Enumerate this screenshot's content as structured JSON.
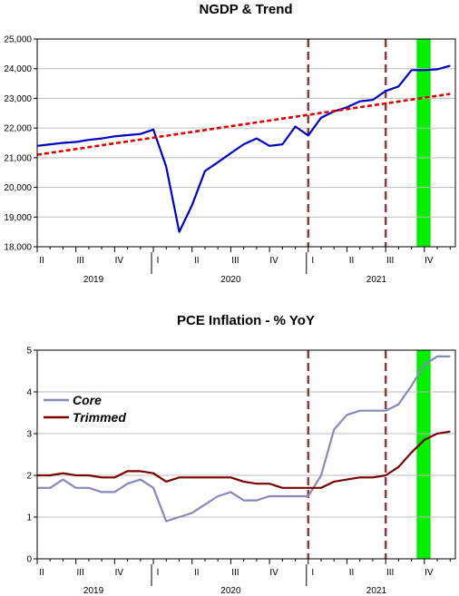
{
  "chart_data": [
    {
      "type": "line",
      "title": "NGDP & Trend",
      "ylim": [
        18000,
        25000
      ],
      "yticks": [
        18000,
        19000,
        20000,
        21000,
        22000,
        23000,
        24000,
        25000
      ],
      "ytick_labels": [
        "18,000",
        "19,000",
        "20,000",
        "21,000",
        "22,000",
        "23,000",
        "24,000",
        "25,000"
      ],
      "xlim": [
        2019.25,
        2021.95
      ],
      "quarter_ticks": [
        {
          "label": "II",
          "x": 2019.25
        },
        {
          "label": "III",
          "x": 2019.5
        },
        {
          "label": "IV",
          "x": 2019.75
        },
        {
          "label": "I",
          "x": 2020.0
        },
        {
          "label": "II",
          "x": 2020.25
        },
        {
          "label": "III",
          "x": 2020.5
        },
        {
          "label": "IV",
          "x": 2020.75
        },
        {
          "label": "I",
          "x": 2021.0
        },
        {
          "label": "II",
          "x": 2021.25
        },
        {
          "label": "III",
          "x": 2021.5
        },
        {
          "label": "IV",
          "x": 2021.75
        }
      ],
      "year_labels": [
        {
          "label": "2019",
          "x": 2019.25
        },
        {
          "label": "2020",
          "x": 2020.38
        },
        {
          "label": "2021",
          "x": 2021.38
        }
      ],
      "grid": "horizontal",
      "series": [
        {
          "color": "#0000c0",
          "style": "solid",
          "x": [
            2019.25,
            2019.333,
            2019.417,
            2019.5,
            2019.583,
            2019.667,
            2019.75,
            2019.833,
            2019.917,
            2020.0,
            2020.083,
            2020.167,
            2020.25,
            2020.333,
            2020.417,
            2020.5,
            2020.583,
            2020.667,
            2020.75,
            2020.833,
            2020.917,
            2021.0,
            2021.083,
            2021.167,
            2021.25,
            2021.333,
            2021.417,
            2021.5,
            2021.583,
            2021.667,
            2021.75,
            2021.833,
            2021.917
          ],
          "values": [
            21400,
            21450,
            21500,
            21530,
            21600,
            21650,
            21720,
            21760,
            21800,
            21950,
            20700,
            18500,
            19400,
            20550,
            20850,
            21150,
            21450,
            21650,
            21400,
            21450,
            22050,
            21750,
            22350,
            22560,
            22700,
            22900,
            22950,
            23250,
            23400,
            23950,
            23950,
            23980,
            24100
          ]
        },
        {
          "color": "#dd0000",
          "style": "dashed",
          "x": [
            2019.25,
            2021.917
          ],
          "values": [
            21100,
            23150
          ]
        }
      ],
      "vlines": [
        {
          "x": 2021.0,
          "color": "#8b3a3a",
          "style": "dashed"
        },
        {
          "x": 2021.5,
          "color": "#8b3a3a",
          "style": "dashed"
        }
      ],
      "shaded_band": {
        "x0": 2021.7,
        "x1": 2021.79,
        "color": "#00ee00"
      }
    },
    {
      "type": "line",
      "title": "PCE Inflation - % YoY",
      "ylim": [
        0,
        5
      ],
      "yticks": [
        0,
        1,
        2,
        3,
        4,
        5
      ],
      "ytick_labels": [
        "0",
        "1",
        "2",
        "3",
        "4",
        "5"
      ],
      "xlim": [
        2019.25,
        2021.95
      ],
      "quarter_ticks": [
        {
          "label": "II",
          "x": 2019.25
        },
        {
          "label": "III",
          "x": 2019.5
        },
        {
          "label": "IV",
          "x": 2019.75
        },
        {
          "label": "I",
          "x": 2020.0
        },
        {
          "label": "II",
          "x": 2020.25
        },
        {
          "label": "III",
          "x": 2020.5
        },
        {
          "label": "IV",
          "x": 2020.75
        },
        {
          "label": "I",
          "x": 2021.0
        },
        {
          "label": "II",
          "x": 2021.25
        },
        {
          "label": "III",
          "x": 2021.5
        },
        {
          "label": "IV",
          "x": 2021.75
        }
      ],
      "year_labels": [
        {
          "label": "2019",
          "x": 2019.25
        },
        {
          "label": "2020",
          "x": 2020.38
        },
        {
          "label": "2021",
          "x": 2021.38
        }
      ],
      "grid": "horizontal",
      "legend": "left",
      "series": [
        {
          "name": "Core",
          "color": "#8888bb",
          "style": "solid",
          "x": [
            2019.25,
            2019.333,
            2019.417,
            2019.5,
            2019.583,
            2019.667,
            2019.75,
            2019.833,
            2019.917,
            2020.0,
            2020.083,
            2020.167,
            2020.25,
            2020.333,
            2020.417,
            2020.5,
            2020.583,
            2020.667,
            2020.75,
            2020.833,
            2020.917,
            2021.0,
            2021.083,
            2021.167,
            2021.25,
            2021.333,
            2021.417,
            2021.5,
            2021.583,
            2021.667,
            2021.75,
            2021.833,
            2021.917
          ],
          "values": [
            1.7,
            1.7,
            1.9,
            1.7,
            1.7,
            1.6,
            1.6,
            1.8,
            1.9,
            1.7,
            0.9,
            1.0,
            1.1,
            1.3,
            1.5,
            1.6,
            1.4,
            1.4,
            1.5,
            1.5,
            1.5,
            1.5,
            2.0,
            3.1,
            3.45,
            3.55,
            3.55,
            3.55,
            3.7,
            4.15,
            4.65,
            4.85,
            4.85
          ]
        },
        {
          "name": "Trimmed",
          "color": "#7a0000",
          "style": "solid",
          "x": [
            2019.25,
            2019.333,
            2019.417,
            2019.5,
            2019.583,
            2019.667,
            2019.75,
            2019.833,
            2019.917,
            2020.0,
            2020.083,
            2020.167,
            2020.25,
            2020.333,
            2020.417,
            2020.5,
            2020.583,
            2020.667,
            2020.75,
            2020.833,
            2020.917,
            2021.0,
            2021.083,
            2021.167,
            2021.25,
            2021.333,
            2021.417,
            2021.5,
            2021.583,
            2021.667,
            2021.75,
            2021.833,
            2021.917
          ],
          "values": [
            2.0,
            2.0,
            2.05,
            2.0,
            2.0,
            1.95,
            1.95,
            2.1,
            2.1,
            2.05,
            1.85,
            1.95,
            1.95,
            1.95,
            1.95,
            1.95,
            1.85,
            1.8,
            1.8,
            1.7,
            1.7,
            1.7,
            1.7,
            1.85,
            1.9,
            1.95,
            1.95,
            2.0,
            2.2,
            2.55,
            2.85,
            3.0,
            3.05
          ]
        }
      ],
      "vlines": [
        {
          "x": 2021.0,
          "color": "#8b3a3a",
          "style": "dashed"
        },
        {
          "x": 2021.5,
          "color": "#8b3a3a",
          "style": "dashed"
        }
      ],
      "shaded_band": {
        "x0": 2021.7,
        "x1": 2021.79,
        "color": "#00ee00"
      }
    }
  ]
}
